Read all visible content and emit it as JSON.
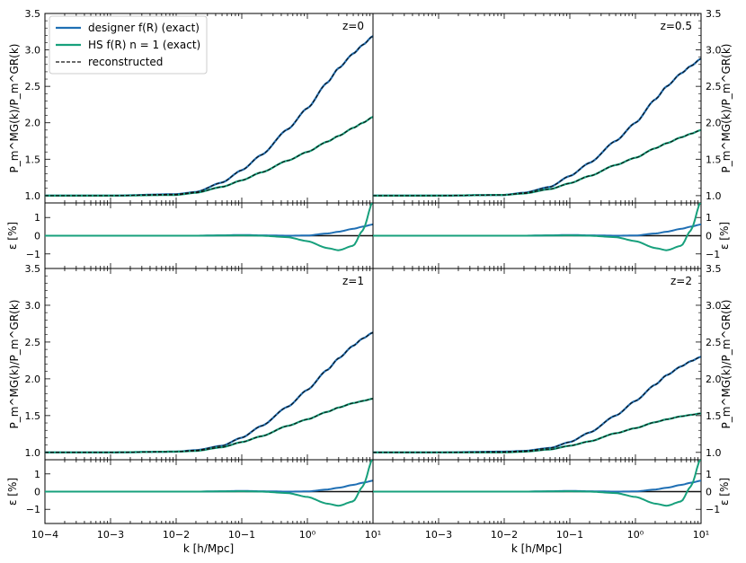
{
  "colors": {
    "designer": "#1f6fb4",
    "hs": "#17a07c",
    "reconstructed": "#111111"
  },
  "chart_data": {
    "type": "line",
    "x_scale": "log",
    "xlim": [
      0.0001,
      10
    ],
    "x_ticks": [
      0.0001,
      0.001,
      0.01,
      0.1,
      1,
      10
    ],
    "x_tick_labels": [
      "10−4",
      "10−3",
      "10−2",
      "10−1",
      "10⁰",
      "10¹"
    ],
    "xlabel": "k [h/Mpc]",
    "ratio_ylabel": "P_m^MG(k)/P_m^GR(k)",
    "ratio_ylim": [
      0.9,
      3.5
    ],
    "ratio_y_ticks": [
      "1.0",
      "1.5",
      "2.0",
      "2.5",
      "3.0",
      "3.5"
    ],
    "error_ylabel": "ε [%]",
    "error_ylim": [
      -1.8,
      1.8
    ],
    "error_y_ticks": [
      "1",
      "0",
      "−1"
    ],
    "legend": {
      "placement": "top-left",
      "entries": [
        "designer f(R) (exact)",
        "HS f(R) n = 1 (exact)",
        "reconstructed"
      ]
    },
    "k_samples": [
      0.0001,
      0.001,
      0.01,
      0.02,
      0.05,
      0.1,
      0.2,
      0.5,
      1,
      2,
      3,
      5,
      7,
      10
    ],
    "panels": [
      {
        "label": "z=0",
        "designer_ratio": [
          1.0,
          1.0,
          1.02,
          1.05,
          1.18,
          1.35,
          1.56,
          1.91,
          2.2,
          2.55,
          2.75,
          2.95,
          3.07,
          3.19
        ],
        "hs_ratio": [
          1.0,
          1.0,
          1.01,
          1.04,
          1.12,
          1.21,
          1.32,
          1.48,
          1.6,
          1.74,
          1.82,
          1.93,
          2.0,
          2.08
        ],
        "designer_error": [
          0,
          0,
          0,
          0,
          0.02,
          0.04,
          0.02,
          0,
          0.01,
          0.12,
          0.22,
          0.38,
          0.5,
          0.62
        ],
        "hs_error": [
          0,
          0,
          0,
          0,
          0.01,
          0.02,
          0.0,
          -0.08,
          -0.3,
          -0.68,
          -0.8,
          -0.55,
          0.3,
          1.9
        ]
      },
      {
        "label": "z=0.5",
        "designer_ratio": [
          1.0,
          1.0,
          1.01,
          1.04,
          1.12,
          1.27,
          1.45,
          1.75,
          2.0,
          2.32,
          2.5,
          2.68,
          2.78,
          2.88
        ],
        "hs_ratio": [
          1.0,
          1.0,
          1.01,
          1.03,
          1.09,
          1.17,
          1.27,
          1.42,
          1.52,
          1.65,
          1.72,
          1.8,
          1.85,
          1.9
        ],
        "designer_error": [
          0,
          0,
          0,
          0,
          0.02,
          0.04,
          0.02,
          0,
          0.01,
          0.12,
          0.22,
          0.38,
          0.5,
          0.62
        ],
        "hs_error": [
          0,
          0,
          0,
          0,
          0.01,
          0.02,
          0.0,
          -0.08,
          -0.3,
          -0.68,
          -0.8,
          -0.55,
          0.3,
          1.9
        ]
      },
      {
        "label": "z=1",
        "designer_ratio": [
          1.0,
          1.0,
          1.01,
          1.03,
          1.09,
          1.2,
          1.36,
          1.62,
          1.85,
          2.12,
          2.28,
          2.45,
          2.55,
          2.63
        ],
        "hs_ratio": [
          1.0,
          1.0,
          1.01,
          1.02,
          1.07,
          1.14,
          1.22,
          1.36,
          1.45,
          1.55,
          1.61,
          1.67,
          1.7,
          1.73
        ],
        "designer_error": [
          0,
          0,
          0,
          0,
          0.02,
          0.04,
          0.02,
          0,
          0.01,
          0.12,
          0.22,
          0.38,
          0.5,
          0.62
        ],
        "hs_error": [
          0,
          0,
          0,
          0,
          0.01,
          0.02,
          0.0,
          -0.08,
          -0.3,
          -0.68,
          -0.8,
          -0.55,
          0.3,
          1.9
        ]
      },
      {
        "label": "z=2",
        "designer_ratio": [
          1.0,
          1.0,
          1.01,
          1.02,
          1.06,
          1.14,
          1.27,
          1.5,
          1.7,
          1.92,
          2.05,
          2.17,
          2.24,
          2.3
        ],
        "hs_ratio": [
          1.0,
          1.0,
          1.0,
          1.01,
          1.04,
          1.09,
          1.15,
          1.26,
          1.33,
          1.41,
          1.45,
          1.49,
          1.51,
          1.53
        ],
        "designer_error": [
          0,
          0,
          0,
          0,
          0.02,
          0.04,
          0.02,
          0,
          0.01,
          0.12,
          0.22,
          0.38,
          0.5,
          0.62
        ],
        "hs_error": [
          0,
          0,
          0,
          0,
          0.01,
          0.02,
          0.0,
          -0.08,
          -0.3,
          -0.68,
          -0.8,
          -0.55,
          0.3,
          1.9
        ]
      }
    ]
  }
}
